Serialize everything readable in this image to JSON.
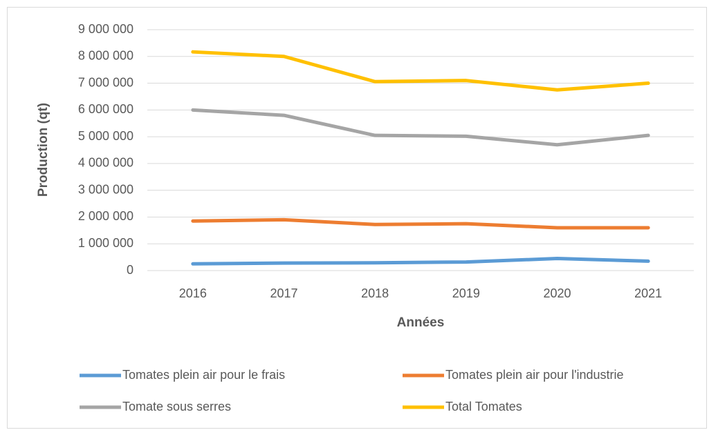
{
  "chart_data": {
    "type": "line",
    "x_label": "Années",
    "y_label": "Production (qt)",
    "categories": [
      "2016",
      "2017",
      "2018",
      "2019",
      "2020",
      "2021"
    ],
    "series": [
      {
        "name": "Tomates plein air pour le frais",
        "color": "#5b9bd5",
        "values": [
          250000,
          280000,
          290000,
          320000,
          450000,
          350000
        ]
      },
      {
        "name": "Tomates plein air pour l'industrie",
        "color": "#ed7d31",
        "values": [
          1850000,
          1900000,
          1720000,
          1750000,
          1600000,
          1600000
        ]
      },
      {
        "name": "Tomate sous serres",
        "color": "#a5a5a5",
        "values": [
          6000000,
          5800000,
          5050000,
          5020000,
          4700000,
          5050000
        ]
      },
      {
        "name": "Total Tomates",
        "color": "#ffc000",
        "values": [
          8170000,
          8000000,
          7060000,
          7100000,
          6750000,
          7000000
        ]
      }
    ],
    "ylim": [
      0,
      9000000
    ],
    "yticks": [
      0,
      {
        "value": 1000000,
        "label": "1 000 000"
      },
      {
        "value": 2000000,
        "label": "2 000 000"
      },
      {
        "value": 3000000,
        "label": "3 000 000"
      },
      {
        "value": 4000000,
        "label": "4 000 000"
      },
      {
        "value": 5000000,
        "label": "5 000 000"
      },
      {
        "value": 6000000,
        "label": "6 000 000"
      },
      {
        "value": 7000000,
        "label": "7 000 000"
      },
      {
        "value": 8000000,
        "label": "8 000 000"
      },
      {
        "value": 9000000,
        "label": "9 000 000"
      }
    ],
    "grid": true,
    "legend": "bottom"
  }
}
